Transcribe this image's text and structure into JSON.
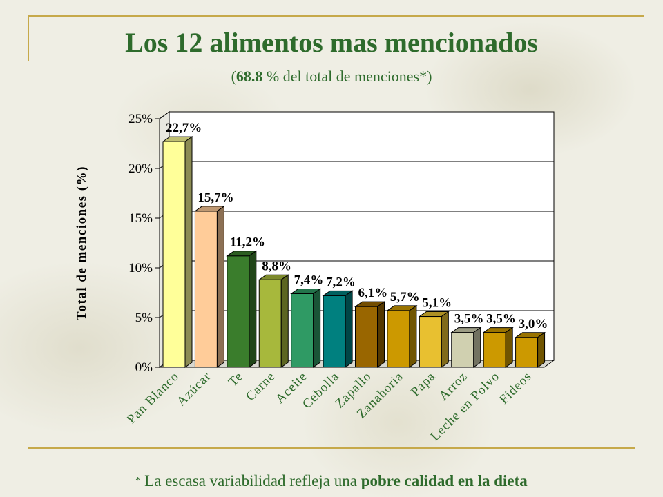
{
  "header": {
    "title": "Los 12 alimentos mas mencionados",
    "subtitle_open": "(",
    "subtitle_value": "68.8",
    "subtitle_rest": " % del total de menciones*)"
  },
  "footnote": {
    "star": "*",
    "text": "La escasa variabilidad refleja una ",
    "emphasis": "pobre calidad en la dieta"
  },
  "chart_data": {
    "type": "bar",
    "ylabel": "Total de menciones (%)",
    "xlabel": "",
    "ylim": [
      0,
      25
    ],
    "yticks": [
      0,
      5,
      10,
      15,
      20,
      25
    ],
    "ytick_labels": [
      "0%",
      "5%",
      "10%",
      "15%",
      "20%",
      "25%"
    ],
    "grid": true,
    "categories": [
      "Pan Blanco",
      "Azúcar",
      "Te",
      "Carne",
      "Aceite",
      "Cebolla",
      "Zapallo",
      "Zanahoria",
      "Papa",
      "Arroz",
      "Leche en Polvo",
      "Fideos"
    ],
    "values": [
      22.7,
      15.7,
      11.2,
      8.8,
      7.4,
      7.2,
      6.1,
      5.7,
      5.1,
      3.5,
      3.5,
      3.0
    ],
    "data_labels": [
      "22,7%",
      "15,7%",
      "11,2%",
      "8,8%",
      "7,4%",
      "7,2%",
      "6,1%",
      "5,7%",
      "5,1%",
      "3,5%",
      "3,5%",
      "3,0%"
    ],
    "colors": [
      "#ffff99",
      "#ffcc99",
      "#3a7d2c",
      "#a7b83c",
      "#2f9a64",
      "#00807f",
      "#996600",
      "#cc9900",
      "#e8c030",
      "#d0d0b0",
      "#cc9900",
      "#cc9900"
    ]
  }
}
